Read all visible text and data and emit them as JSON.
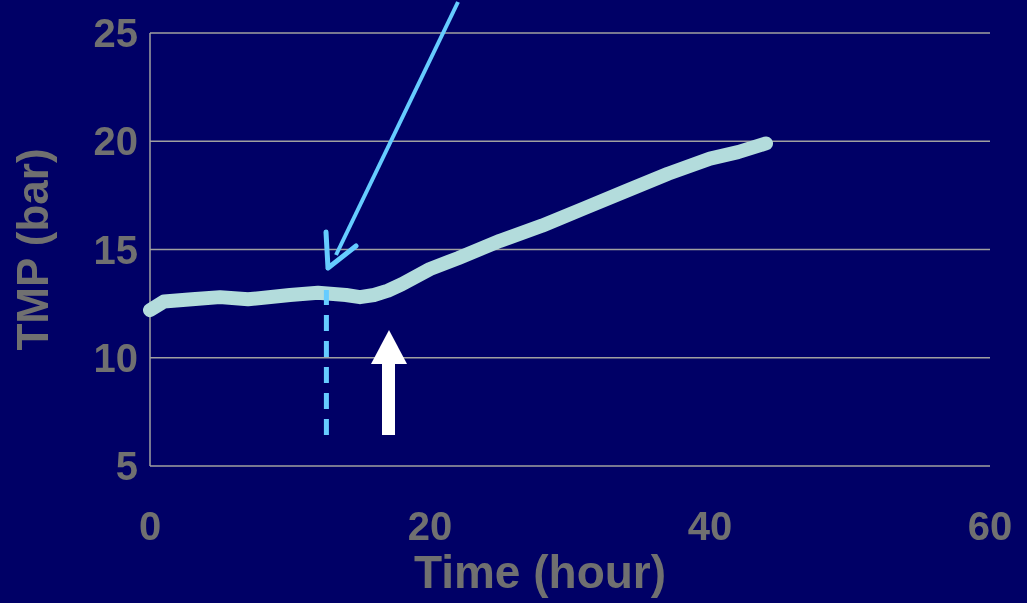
{
  "chart_data": {
    "type": "line",
    "xlabel": "Time (hour)",
    "ylabel": "TMP (bar)",
    "xlim": [
      0,
      60
    ],
    "xticks": [
      0,
      20,
      40,
      60
    ],
    "ylim": [
      5,
      25
    ],
    "yticks": [
      5,
      10,
      15,
      20,
      25
    ],
    "grid": "y",
    "series": [
      {
        "color": "#b3dcdc",
        "x": [
          0,
          1,
          3,
          5,
          7,
          10,
          12,
          14,
          15,
          16,
          17,
          18,
          20,
          22,
          25,
          28,
          31,
          34,
          37,
          40,
          42,
          44
        ],
        "values": [
          12.2,
          12.6,
          12.7,
          12.8,
          12.7,
          12.9,
          13.0,
          12.9,
          12.8,
          12.9,
          13.1,
          13.4,
          14.1,
          14.6,
          15.4,
          16.1,
          16.9,
          17.7,
          18.5,
          19.2,
          19.5,
          19.9
        ]
      }
    ],
    "ref_lines": [
      {
        "axis": "x",
        "value": 12.6,
        "color": "#66ccff",
        "line_style": "dashed"
      }
    ],
    "line_style": "solid"
  }
}
